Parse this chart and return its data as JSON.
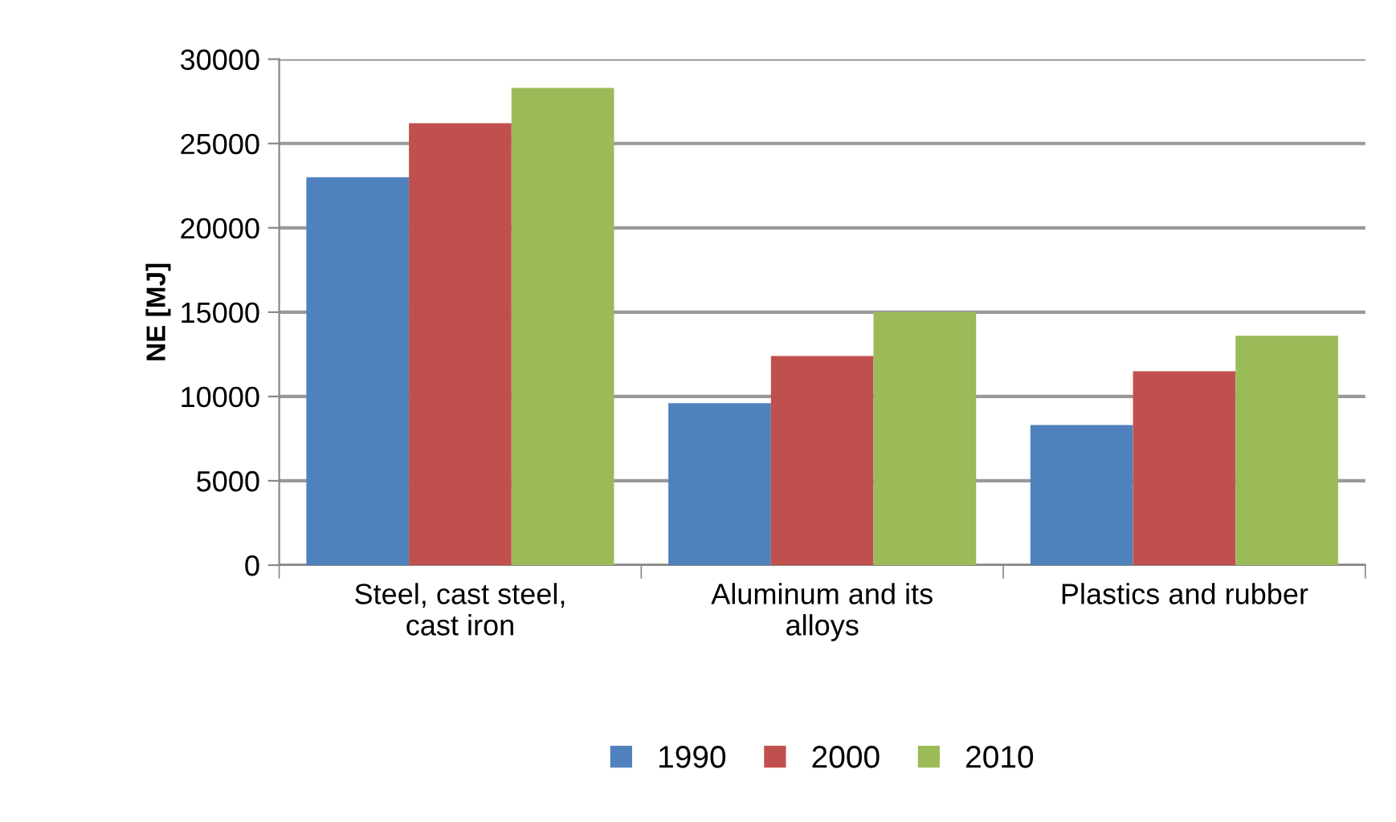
{
  "chart_data": {
    "type": "bar",
    "ylabel": "NE [MJ]",
    "categories": [
      "Steel, cast steel, cast iron",
      "Aluminum and its alloys",
      "Plastics and rubber"
    ],
    "series": [
      {
        "name": "1990",
        "color": "#4f81bd",
        "values": [
          23000,
          9600,
          8300
        ]
      },
      {
        "name": "2000",
        "color": "#c0504d",
        "values": [
          26200,
          12400,
          11500
        ]
      },
      {
        "name": "2010",
        "color": "#9bbb59",
        "values": [
          28300,
          15000,
          13600
        ]
      }
    ],
    "ylim": [
      0,
      30000
    ],
    "yticks": [
      0,
      5000,
      10000,
      15000,
      20000,
      25000,
      30000
    ],
    "grid": "y",
    "legend": "bottom"
  }
}
